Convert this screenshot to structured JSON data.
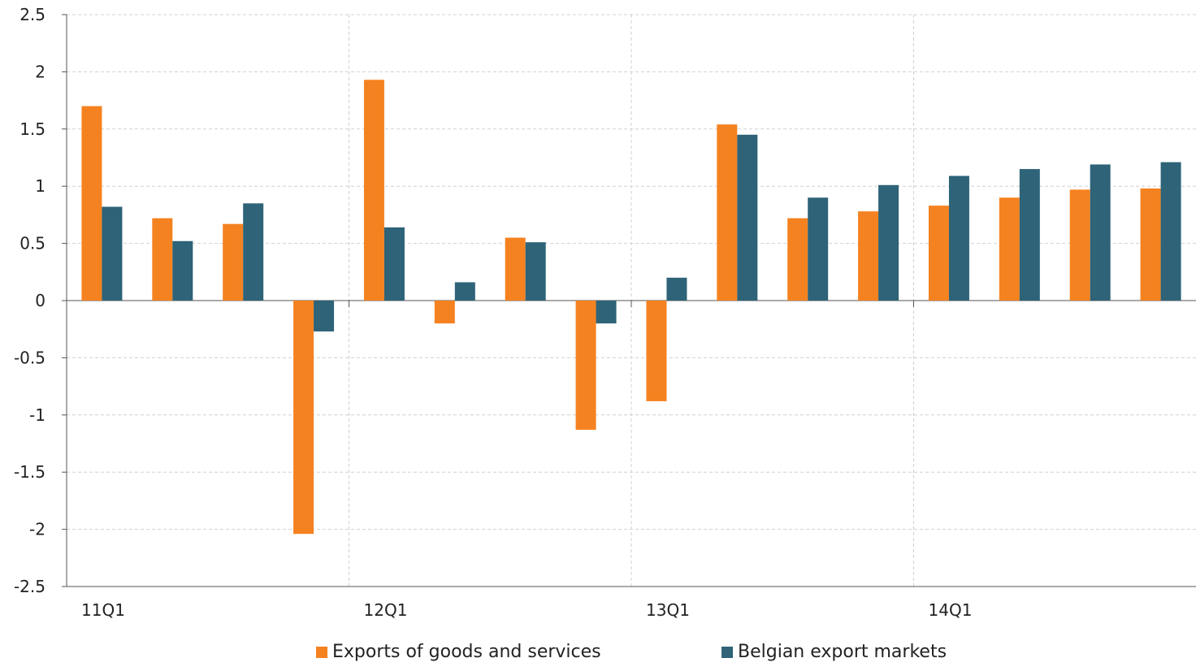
{
  "chart_data": {
    "type": "bar",
    "categories": [
      "11Q1",
      "11Q2",
      "11Q3",
      "11Q4",
      "12Q1",
      "12Q2",
      "12Q3",
      "12Q4",
      "13Q1",
      "13Q2",
      "13Q3",
      "13Q4",
      "14Q1",
      "14Q2",
      "14Q3",
      "14Q4"
    ],
    "x_tick_labels": [
      "11Q1",
      "12Q1",
      "13Q1",
      "14Q1"
    ],
    "series": [
      {
        "name": "Exports of goods and services",
        "color": "#F58220",
        "values": [
          1.7,
          0.72,
          0.67,
          -2.04,
          1.93,
          -0.2,
          0.55,
          -1.13,
          -0.88,
          1.54,
          0.72,
          0.78,
          0.83,
          0.9,
          0.97,
          0.98
        ]
      },
      {
        "name": "Belgian export markets",
        "color": "#2E6378",
        "values": [
          0.82,
          0.52,
          0.85,
          -0.27,
          0.64,
          0.16,
          0.51,
          -0.2,
          0.2,
          1.45,
          0.9,
          1.01,
          1.09,
          1.15,
          1.19,
          1.21
        ]
      }
    ],
    "ylim": [
      -2.5,
      2.5
    ],
    "y_ticks": [
      "2.5",
      "2",
      "1.5",
      "1",
      "0.5",
      "0",
      "-0.5",
      "-1",
      "-1.5",
      "-2",
      "-2.5"
    ],
    "grid": true,
    "legend_position": "bottom",
    "title": "",
    "xlabel": "",
    "ylabel": ""
  },
  "legend": {
    "item1_label": "Exports of goods and services",
    "item2_label": "Belgian export markets"
  }
}
